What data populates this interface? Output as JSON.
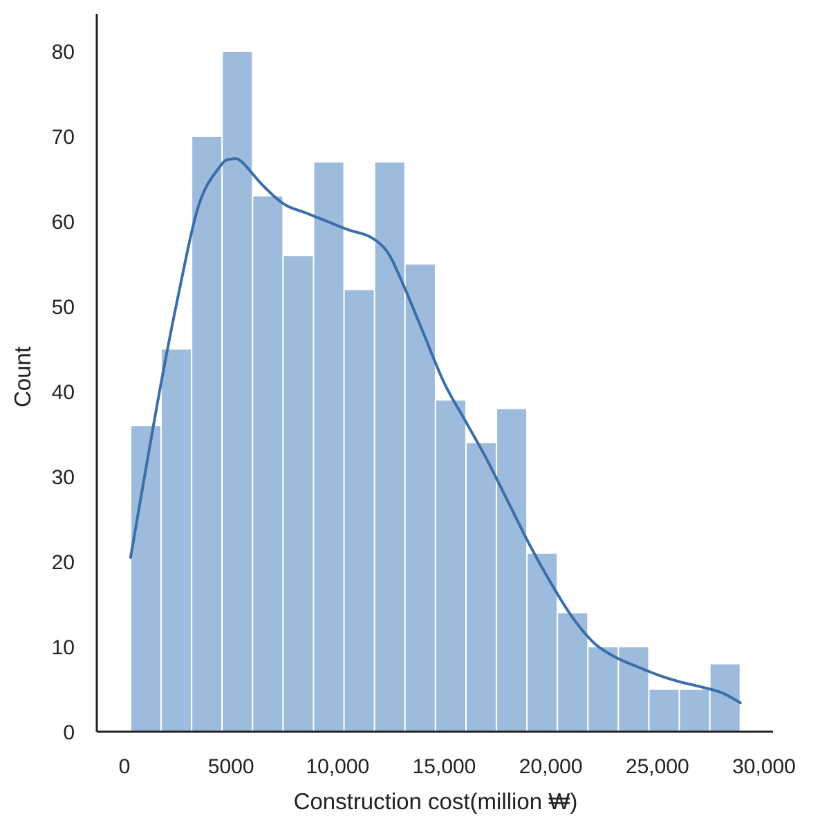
{
  "chart_data": {
    "type": "bar",
    "subtype": "histogram",
    "xlabel": "Construction cost(million ₩)",
    "ylabel": "Count",
    "xlim": [
      -1000,
      30500
    ],
    "ylim": [
      0,
      85
    ],
    "x_ticks": [
      0,
      5000,
      10000,
      15000,
      20000,
      25000,
      30000
    ],
    "x_tick_labels": [
      "0",
      "5000",
      "10,000",
      "15,000",
      "20,000",
      "25,000",
      "30,000"
    ],
    "y_ticks": [
      0,
      10,
      20,
      30,
      40,
      50,
      60,
      70,
      80
    ],
    "y_tick_labels": [
      "0",
      "10",
      "20",
      "30",
      "40",
      "50",
      "60",
      "70",
      "80"
    ],
    "bin_edges": [
      290,
      1720,
      3150,
      4580,
      6010,
      7440,
      8870,
      10300,
      11730,
      13160,
      14590,
      16020,
      17450,
      18880,
      20310,
      21740,
      23170,
      24600,
      26030,
      27460,
      28890
    ],
    "counts": [
      36,
      45,
      70,
      80,
      63,
      56,
      67,
      52,
      67,
      55,
      39,
      34,
      38,
      21,
      14,
      10,
      10,
      5,
      5,
      8
    ],
    "kde_line": {
      "x": [
        290,
        1500,
        2500,
        3500,
        4500,
        5000,
        5500,
        6500,
        7500,
        8500,
        9500,
        10500,
        11500,
        12300,
        13000,
        14000,
        15000,
        16000,
        17000,
        18000,
        19000,
        20000,
        21000,
        22000,
        23000,
        24000,
        25000,
        26000,
        27000,
        28000,
        28890
      ],
      "y": [
        20.5,
        38,
        51,
        62,
        66.5,
        67.3,
        67,
        64.2,
        62,
        61,
        60,
        59,
        58.2,
        56.5,
        53,
        47,
        41,
        36.5,
        32,
        27,
        22,
        17.5,
        13.5,
        10.5,
        8.8,
        7.7,
        6.7,
        5.9,
        5.3,
        4.6,
        3.4
      ]
    },
    "colors": {
      "bar": "#9dbbdc",
      "line": "#3b6ea8",
      "axis": "#222222"
    },
    "grid": false,
    "legend": "none"
  }
}
